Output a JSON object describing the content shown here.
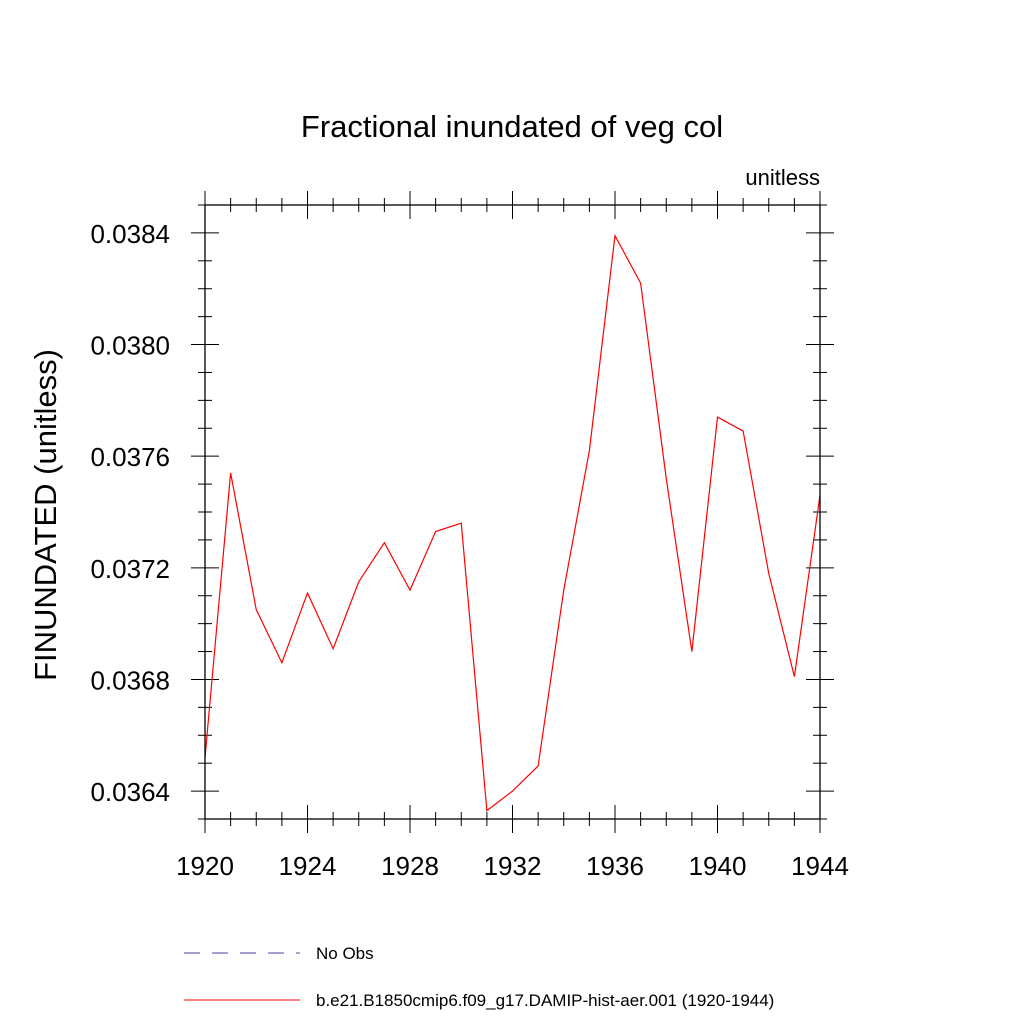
{
  "chart_data": {
    "type": "line",
    "title": "Fractional inundated of veg col",
    "units_label": "unitless",
    "ylabel": "FINUNDATED  (unitless)",
    "xlabel": "",
    "xlim": [
      1920,
      1944
    ],
    "ylim": [
      0.0363,
      0.0385
    ],
    "x_ticks": [
      1920,
      1924,
      1928,
      1932,
      1936,
      1940,
      1944
    ],
    "x_tick_labels": [
      "1920",
      "1924",
      "1928",
      "1932",
      "1936",
      "1940",
      "1944"
    ],
    "y_ticks": [
      0.0364,
      0.0368,
      0.0372,
      0.0376,
      0.038,
      0.0384
    ],
    "y_tick_labels": [
      "0.0364",
      "0.0368",
      "0.0372",
      "0.0376",
      "0.0380",
      "0.0384"
    ],
    "grid": false,
    "legend_position": "bottom",
    "series": [
      {
        "name": "No Obs",
        "color": "#4a3f9f",
        "style": "dashed",
        "x": [],
        "values": []
      },
      {
        "name": "b.e21.B1850cmip6.f09_g17.DAMIP-hist-aer.001 (1920-1944)",
        "color": "#ff0000",
        "style": "solid",
        "x": [
          1920,
          1921,
          1922,
          1923,
          1924,
          1925,
          1926,
          1927,
          1928,
          1929,
          1930,
          1931,
          1932,
          1933,
          1934,
          1935,
          1936,
          1937,
          1938,
          1939,
          1940,
          1941,
          1942,
          1943,
          1944
        ],
        "values": [
          0.03652,
          0.03754,
          0.03705,
          0.03686,
          0.03711,
          0.03691,
          0.03715,
          0.03729,
          0.03712,
          0.03733,
          0.03736,
          0.03633,
          0.0364,
          0.03649,
          0.03712,
          0.03762,
          0.03839,
          0.03822,
          0.03752,
          0.0369,
          0.03774,
          0.03769,
          0.03718,
          0.03681,
          0.03746
        ]
      }
    ]
  }
}
